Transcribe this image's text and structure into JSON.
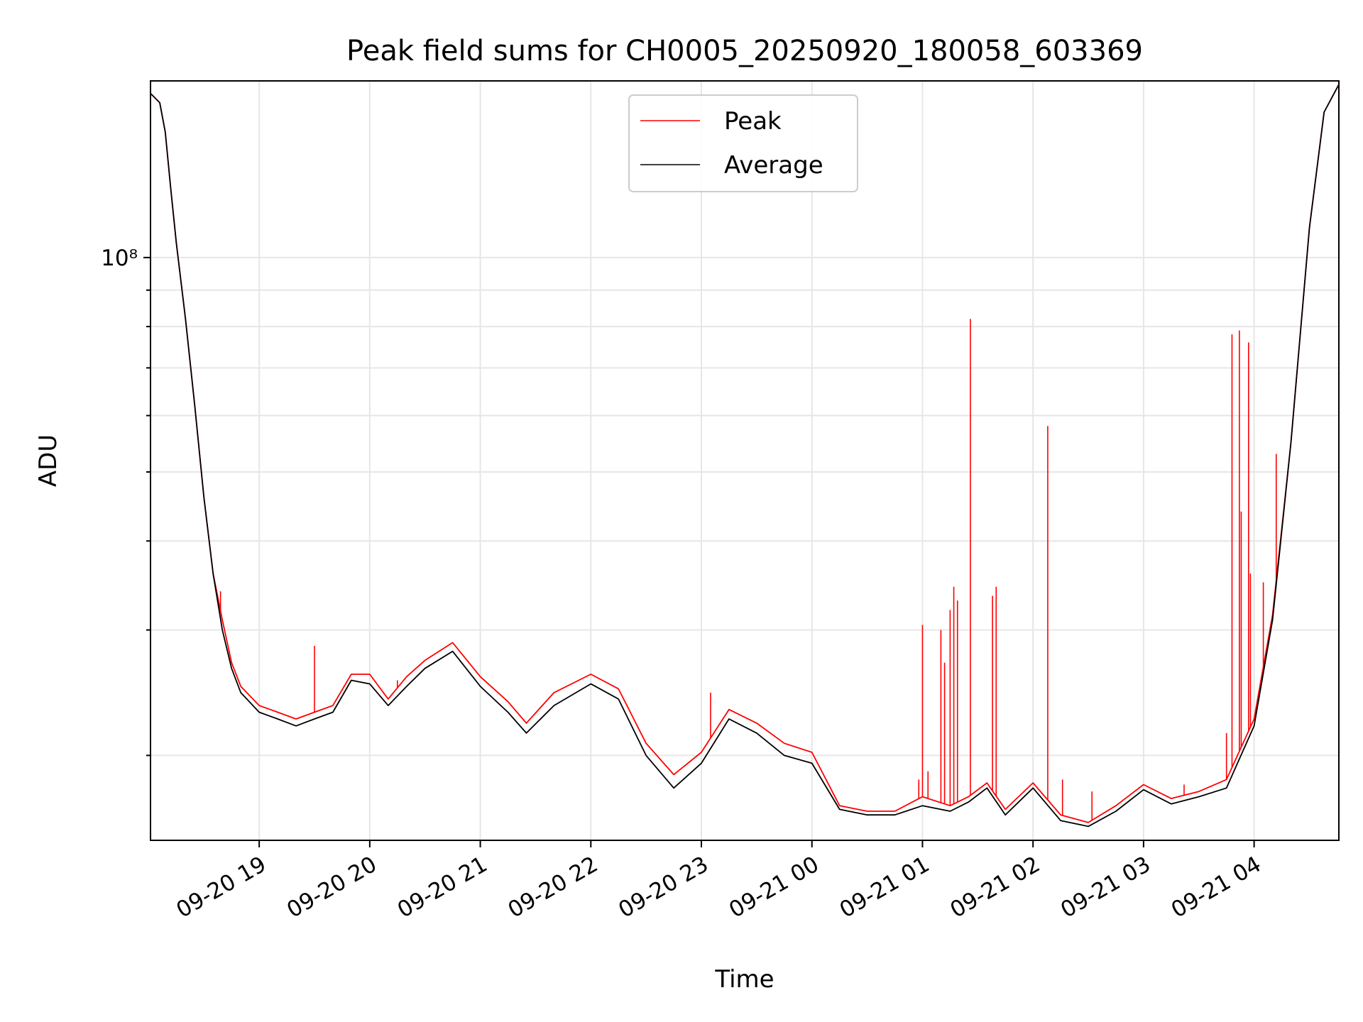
{
  "chart_data": {
    "type": "line",
    "title": "Peak field sums for CH0005_20250920_180058_603369",
    "xlabel": "Time",
    "ylabel": "ADU",
    "y_scale": "log",
    "ylim": [
      15200000,
      177000000
    ],
    "xlim": [
      "2025-09-20 18:01",
      "2025-09-21 04:46"
    ],
    "grid": true,
    "legend_position": "top-center",
    "x_ticks": [
      {
        "t": "2025-09-20 19:00",
        "label": "09-20 19"
      },
      {
        "t": "2025-09-20 20:00",
        "label": "09-20 20"
      },
      {
        "t": "2025-09-20 21:00",
        "label": "09-20 21"
      },
      {
        "t": "2025-09-20 22:00",
        "label": "09-20 22"
      },
      {
        "t": "2025-09-20 23:00",
        "label": "09-20 23"
      },
      {
        "t": "2025-09-21 00:00",
        "label": "09-21 00"
      },
      {
        "t": "2025-09-21 01:00",
        "label": "09-21 01"
      },
      {
        "t": "2025-09-21 02:00",
        "label": "09-21 02"
      },
      {
        "t": "2025-09-21 03:00",
        "label": "09-21 03"
      },
      {
        "t": "2025-09-21 04:00",
        "label": "09-21 04"
      }
    ],
    "y_major_ticks": [
      {
        "value": 100000000,
        "label": "10⁸"
      }
    ],
    "series": [
      {
        "name": "Average",
        "color": "#000000",
        "x": [
          "2025-09-20 18:01",
          "2025-09-20 18:06",
          "2025-09-20 18:09",
          "2025-09-20 18:12",
          "2025-09-20 18:15",
          "2025-09-20 18:20",
          "2025-09-20 18:25",
          "2025-09-20 18:30",
          "2025-09-20 18:35",
          "2025-09-20 18:40",
          "2025-09-20 18:45",
          "2025-09-20 18:50",
          "2025-09-20 19:00",
          "2025-09-20 19:10",
          "2025-09-20 19:20",
          "2025-09-20 19:30",
          "2025-09-20 19:40",
          "2025-09-20 19:50",
          "2025-09-20 20:00",
          "2025-09-20 20:10",
          "2025-09-20 20:20",
          "2025-09-20 20:30",
          "2025-09-20 20:45",
          "2025-09-20 21:00",
          "2025-09-20 21:15",
          "2025-09-20 21:25",
          "2025-09-20 21:40",
          "2025-09-20 22:00",
          "2025-09-20 22:15",
          "2025-09-20 22:30",
          "2025-09-20 22:45",
          "2025-09-20 23:00",
          "2025-09-20 23:15",
          "2025-09-20 23:30",
          "2025-09-20 23:45",
          "2025-09-21 00:00",
          "2025-09-21 00:15",
          "2025-09-21 00:30",
          "2025-09-21 00:45",
          "2025-09-21 01:00",
          "2025-09-21 01:15",
          "2025-09-21 01:25",
          "2025-09-21 01:35",
          "2025-09-21 01:45",
          "2025-09-21 02:00",
          "2025-09-21 02:15",
          "2025-09-21 02:30",
          "2025-09-21 02:45",
          "2025-09-21 03:00",
          "2025-09-21 03:15",
          "2025-09-21 03:30",
          "2025-09-21 03:45",
          "2025-09-21 04:00",
          "2025-09-21 04:10",
          "2025-09-21 04:20",
          "2025-09-21 04:30",
          "2025-09-21 04:38",
          "2025-09-21 04:46"
        ],
        "y": [
          170000000,
          165000000,
          150000000,
          125000000,
          105000000,
          82000000,
          62000000,
          46000000,
          36000000,
          30000000,
          26500000,
          24500000,
          23000000,
          22500000,
          22000000,
          22500000,
          23000000,
          25500000,
          25200000,
          23500000,
          25000000,
          26500000,
          28000000,
          25000000,
          23000000,
          21500000,
          23500000,
          25200000,
          24000000,
          20000000,
          18000000,
          19500000,
          22500000,
          21500000,
          20000000,
          19500000,
          16800000,
          16500000,
          16500000,
          17000000,
          16700000,
          17200000,
          18000000,
          16500000,
          18000000,
          16200000,
          15900000,
          16700000,
          17900000,
          17100000,
          17500000,
          18000000,
          22000000,
          31000000,
          55000000,
          110000000,
          160000000,
          175000000
        ]
      },
      {
        "name": "Peak",
        "color": "#ff0000",
        "x": [
          "2025-09-20 18:01",
          "2025-09-20 18:06",
          "2025-09-20 18:09",
          "2025-09-20 18:12",
          "2025-09-20 18:15",
          "2025-09-20 18:20",
          "2025-09-20 18:25",
          "2025-09-20 18:30",
          "2025-09-20 18:35",
          "2025-09-20 18:40",
          "2025-09-20 18:45",
          "2025-09-20 18:50",
          "2025-09-20 19:00",
          "2025-09-20 19:10",
          "2025-09-20 19:20",
          "2025-09-20 19:30",
          "2025-09-20 19:40",
          "2025-09-20 19:50",
          "2025-09-20 20:00",
          "2025-09-20 20:10",
          "2025-09-20 20:20",
          "2025-09-20 20:30",
          "2025-09-20 20:45",
          "2025-09-20 21:00",
          "2025-09-20 21:15",
          "2025-09-20 21:25",
          "2025-09-20 21:40",
          "2025-09-20 22:00",
          "2025-09-20 22:15",
          "2025-09-20 22:30",
          "2025-09-20 22:45",
          "2025-09-20 23:00",
          "2025-09-20 23:15",
          "2025-09-20 23:30",
          "2025-09-20 23:45",
          "2025-09-21 00:00",
          "2025-09-21 00:15",
          "2025-09-21 00:30",
          "2025-09-21 00:45",
          "2025-09-21 01:00",
          "2025-09-21 01:15",
          "2025-09-21 01:25",
          "2025-09-21 01:35",
          "2025-09-21 01:45",
          "2025-09-21 02:00",
          "2025-09-21 02:15",
          "2025-09-21 02:30",
          "2025-09-21 02:45",
          "2025-09-21 03:00",
          "2025-09-21 03:15",
          "2025-09-21 03:30",
          "2025-09-21 03:45",
          "2025-09-21 04:00",
          "2025-09-21 04:10",
          "2025-09-21 04:20",
          "2025-09-21 04:30",
          "2025-09-21 04:38",
          "2025-09-21 04:46"
        ],
        "y": [
          170000000,
          165000000,
          150000000,
          125000000,
          105000000,
          82000000,
          62000000,
          46000000,
          36000000,
          31000000,
          27000000,
          25000000,
          23500000,
          23000000,
          22500000,
          23000000,
          23500000,
          26000000,
          26000000,
          24000000,
          25800000,
          27200000,
          28800000,
          25800000,
          23800000,
          22200000,
          24500000,
          26000000,
          24800000,
          20800000,
          18800000,
          20200000,
          23200000,
          22200000,
          20800000,
          20200000,
          17000000,
          16700000,
          16700000,
          17500000,
          17000000,
          17500000,
          18300000,
          16800000,
          18300000,
          16500000,
          16100000,
          17000000,
          18200000,
          17400000,
          17800000,
          18500000,
          22500000,
          31500000,
          55000000,
          110000000,
          160000000,
          175000000
        ]
      }
    ],
    "peak_spikes": [
      {
        "x": "2025-09-20 18:39",
        "y": 34000000
      },
      {
        "x": "2025-09-20 19:30",
        "y": 28500000
      },
      {
        "x": "2025-09-20 20:15",
        "y": 25500000
      },
      {
        "x": "2025-09-20 23:05",
        "y": 24500000
      },
      {
        "x": "2025-09-21 00:58",
        "y": 18500000
      },
      {
        "x": "2025-09-21 01:00",
        "y": 30500000
      },
      {
        "x": "2025-09-21 01:03",
        "y": 19000000
      },
      {
        "x": "2025-09-21 01:10",
        "y": 30000000
      },
      {
        "x": "2025-09-21 01:12",
        "y": 27000000
      },
      {
        "x": "2025-09-21 01:15",
        "y": 32000000
      },
      {
        "x": "2025-09-21 01:17",
        "y": 34500000
      },
      {
        "x": "2025-09-21 01:19",
        "y": 33000000
      },
      {
        "x": "2025-09-21 01:26",
        "y": 82000000
      },
      {
        "x": "2025-09-21 01:38",
        "y": 33500000
      },
      {
        "x": "2025-09-21 01:40",
        "y": 34500000
      },
      {
        "x": "2025-09-21 02:08",
        "y": 58000000
      },
      {
        "x": "2025-09-21 02:16",
        "y": 18500000
      },
      {
        "x": "2025-09-21 02:32",
        "y": 17800000
      },
      {
        "x": "2025-09-21 03:22",
        "y": 18200000
      },
      {
        "x": "2025-09-21 03:45",
        "y": 21500000
      },
      {
        "x": "2025-09-21 03:48",
        "y": 78000000
      },
      {
        "x": "2025-09-21 03:52",
        "y": 79000000
      },
      {
        "x": "2025-09-21 03:53",
        "y": 44000000
      },
      {
        "x": "2025-09-21 03:57",
        "y": 76000000
      },
      {
        "x": "2025-09-21 03:58",
        "y": 36000000
      },
      {
        "x": "2025-09-21 04:05",
        "y": 35000000
      },
      {
        "x": "2025-09-21 04:12",
        "y": 53000000
      }
    ]
  }
}
